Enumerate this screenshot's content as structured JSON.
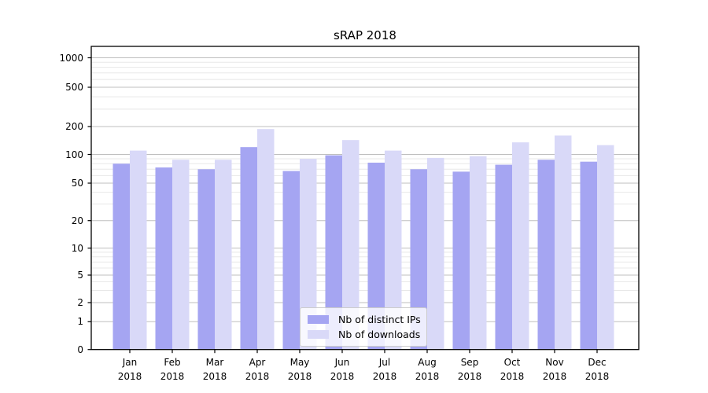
{
  "title": "sRAP 2018",
  "chart_data": {
    "type": "bar",
    "title": "sRAP 2018",
    "categories": [
      "Jan 2018",
      "Feb 2018",
      "Mar 2018",
      "Apr 2018",
      "May 2018",
      "Jun 2018",
      "Jul 2018",
      "Aug 2018",
      "Sep 2018",
      "Oct 2018",
      "Nov 2018",
      "Dec 2018"
    ],
    "series": [
      {
        "name": "Nb of distinct IPs",
        "color": "#a5a5f2",
        "values": [
          80,
          73,
          70,
          120,
          67,
          98,
          82,
          70,
          66,
          78,
          88,
          84
        ]
      },
      {
        "name": "Nb of downloads",
        "color": "#d9d9f8",
        "values": [
          110,
          88,
          88,
          188,
          90,
          143,
          110,
          92,
          96,
          135,
          160,
          126
        ]
      }
    ],
    "xlabel": "",
    "ylabel": "",
    "yscale": "symlog",
    "y_ticks": [
      1000,
      500,
      200,
      100,
      50,
      20,
      10,
      5,
      2,
      1,
      0
    ],
    "y_minor_ticks": [
      3,
      4,
      6,
      7,
      8,
      9,
      30,
      40,
      60,
      70,
      80,
      90,
      300,
      400,
      600,
      700,
      800,
      900
    ],
    "ylim": [
      0,
      1320
    ],
    "grid": true,
    "legend_position": "lower center",
    "colors": {
      "major_grid": "#bfbfbf",
      "minor_grid": "#e8e8e8",
      "axis": "#000000",
      "background": "#ffffff"
    }
  }
}
